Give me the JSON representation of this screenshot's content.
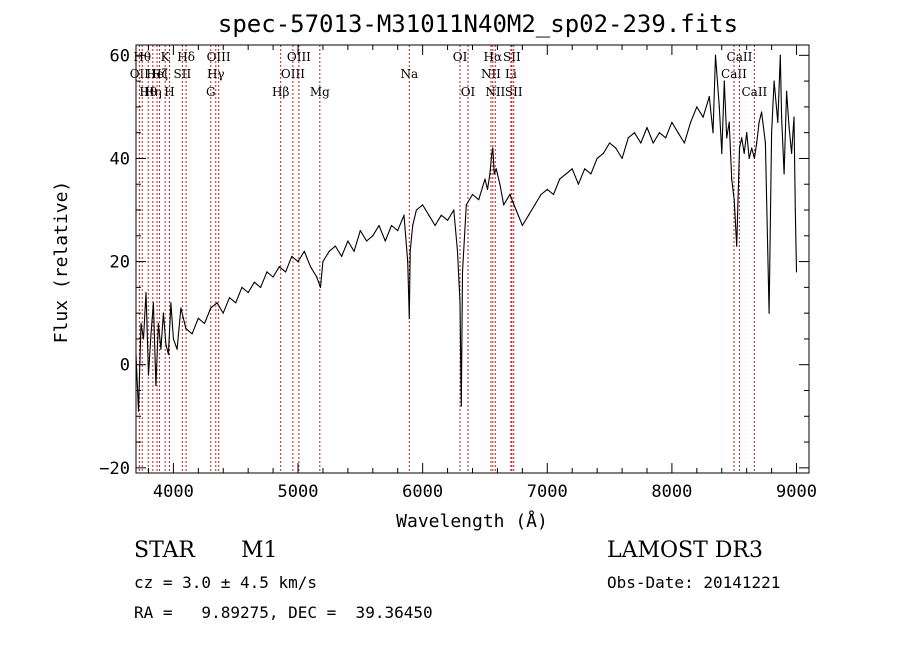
{
  "chart_data": {
    "type": "line",
    "title": "spec-57013-M31011N40M2_sp02-239.fits",
    "xlabel": "Wavelength (Å)",
    "ylabel": "Flux (relative)",
    "xlim": [
      3700,
      9100
    ],
    "ylim": [
      -21,
      62
    ],
    "xticks": [
      4000,
      5000,
      6000,
      7000,
      8000,
      9000
    ],
    "xtick_labels": [
      "4000",
      "5000",
      "6000",
      "7000",
      "8000",
      "9000"
    ],
    "yticks": [
      -20,
      0,
      20,
      40,
      60
    ],
    "ytick_labels": [
      "−20",
      "0",
      "20",
      "40",
      "60"
    ],
    "grid": false,
    "series": [
      {
        "name": "flux",
        "x": [
          3700,
          3720,
          3740,
          3760,
          3780,
          3800,
          3820,
          3840,
          3860,
          3880,
          3900,
          3920,
          3940,
          3960,
          3980,
          4000,
          4030,
          4060,
          4100,
          4150,
          4200,
          4250,
          4300,
          4350,
          4400,
          4450,
          4500,
          4550,
          4600,
          4650,
          4700,
          4750,
          4800,
          4850,
          4900,
          4950,
          5000,
          5050,
          5100,
          5150,
          5180,
          5200,
          5250,
          5300,
          5350,
          5400,
          5450,
          5500,
          5550,
          5600,
          5650,
          5700,
          5750,
          5800,
          5850,
          5880,
          5893,
          5900,
          5920,
          5950,
          6000,
          6050,
          6100,
          6150,
          6200,
          6250,
          6280,
          6300,
          6310,
          6320,
          6350,
          6400,
          6450,
          6500,
          6520,
          6540,
          6555,
          6563,
          6575,
          6590,
          6620,
          6650,
          6700,
          6750,
          6800,
          6850,
          6900,
          6950,
          7000,
          7050,
          7100,
          7150,
          7200,
          7250,
          7300,
          7350,
          7400,
          7450,
          7500,
          7550,
          7600,
          7650,
          7700,
          7750,
          7800,
          7850,
          7900,
          7950,
          8000,
          8050,
          8100,
          8150,
          8200,
          8250,
          8300,
          8330,
          8350,
          8380,
          8400,
          8420,
          8440,
          8460,
          8480,
          8500,
          8520,
          8542,
          8560,
          8580,
          8600,
          8620,
          8640,
          8662,
          8680,
          8700,
          8720,
          8750,
          8780,
          8800,
          8820,
          8850,
          8870,
          8880,
          8900,
          8920,
          8940,
          8960,
          8980,
          8990,
          9000
        ],
        "values": [
          2,
          -9,
          8,
          5,
          14,
          -2,
          6,
          12,
          -4,
          8,
          3,
          10,
          4,
          2,
          12,
          5,
          3,
          11,
          7,
          6,
          9,
          8,
          11,
          12,
          10,
          13,
          12,
          15,
          14,
          16,
          15,
          18,
          17,
          19,
          18,
          21,
          20,
          22,
          19,
          17,
          15,
          20,
          22,
          23,
          21,
          24,
          22,
          26,
          24,
          25,
          27,
          24,
          27,
          26,
          29,
          20,
          9,
          22,
          27,
          30,
          31,
          29,
          27,
          29,
          28,
          30,
          22,
          12,
          -8,
          18,
          31,
          33,
          32,
          36,
          34,
          37,
          41,
          42,
          37,
          38,
          35,
          31,
          33,
          30,
          27,
          29,
          31,
          33,
          34,
          33,
          36,
          37,
          38,
          35,
          38,
          37,
          40,
          41,
          43,
          42,
          40,
          44,
          45,
          43,
          46,
          43,
          45,
          44,
          47,
          45,
          43,
          47,
          50,
          48,
          52,
          45,
          60,
          50,
          41,
          55,
          44,
          47,
          36,
          32,
          23,
          42,
          44,
          41,
          45,
          40,
          42,
          40,
          43,
          47,
          49,
          43,
          10,
          45,
          55,
          47,
          60,
          48,
          37,
          53,
          46,
          41,
          48,
          30,
          18
        ]
      }
    ],
    "lines": [
      {
        "wave": 3727,
        "label": "OII",
        "row": 2
      },
      {
        "wave": 3750,
        "label": "Hθ",
        "row": 1
      },
      {
        "wave": 3798,
        "label": "Hθ",
        "row": 3
      },
      {
        "wave": 3835,
        "label": "Hη",
        "row": 3
      },
      {
        "wave": 3869,
        "label": "Hel",
        "row": 2
      },
      {
        "wave": 3889,
        "label": "Hζ",
        "row": 2
      },
      {
        "wave": 3934,
        "label": "K",
        "row": 1
      },
      {
        "wave": 3969,
        "label": "H",
        "row": 3
      },
      {
        "wave": 4072,
        "label": "SII",
        "row": 2
      },
      {
        "wave": 4102,
        "label": "Hδ",
        "row": 1
      },
      {
        "wave": 4300,
        "label": "G",
        "row": 3
      },
      {
        "wave": 4340,
        "label": "Hγ",
        "row": 2
      },
      {
        "wave": 4363,
        "label": "OIII",
        "row": 1
      },
      {
        "wave": 4861,
        "label": "Hβ",
        "row": 3
      },
      {
        "wave": 4959,
        "label": "OIII",
        "row": 2
      },
      {
        "wave": 5007,
        "label": "OIII",
        "row": 1
      },
      {
        "wave": 5175,
        "label": "Mg",
        "row": 3
      },
      {
        "wave": 5893,
        "label": "Na",
        "row": 2
      },
      {
        "wave": 6300,
        "label": "OI",
        "row": 1
      },
      {
        "wave": 6364,
        "label": "OI",
        "row": 3
      },
      {
        "wave": 6548,
        "label": "NII",
        "row": 2
      },
      {
        "wave": 6563,
        "label": "Hα",
        "row": 1
      },
      {
        "wave": 6583,
        "label": "NII",
        "row": 3
      },
      {
        "wave": 6708,
        "label": "Li",
        "row": 2
      },
      {
        "wave": 6716,
        "label": "SII",
        "row": 1
      },
      {
        "wave": 6731,
        "label": "SII",
        "row": 3
      },
      {
        "wave": 8498,
        "label": "CaII",
        "row": 2
      },
      {
        "wave": 8542,
        "label": "CaII",
        "row": 1
      },
      {
        "wave": 8662,
        "label": "CaII",
        "row": 3
      }
    ]
  },
  "info": {
    "class": "STAR",
    "subclass": "M1",
    "survey": "LAMOST DR3",
    "cz": "cz = 3.0 ± 4.5 km/s",
    "obs_date": "Obs-Date: 20141221",
    "coords": "RA =   9.89275, DEC =  39.36450"
  },
  "colors": {
    "line_marker": "#b22222",
    "spectrum": "#000000",
    "axes": "#000000"
  }
}
